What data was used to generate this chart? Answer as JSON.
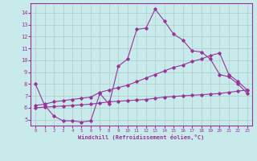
{
  "xlabel": "Windchill (Refroidissement éolien,°C)",
  "bg_color": "#c8eaea",
  "line_color": "#993399",
  "grid_color": "#aacccc",
  "xlim": [
    -0.5,
    23.5
  ],
  "ylim": [
    4.5,
    14.8
  ],
  "xticks": [
    0,
    1,
    2,
    3,
    4,
    5,
    6,
    7,
    8,
    9,
    10,
    11,
    12,
    13,
    14,
    15,
    16,
    17,
    18,
    19,
    20,
    21,
    22,
    23
  ],
  "yticks": [
    5,
    6,
    7,
    8,
    9,
    10,
    11,
    12,
    13,
    14
  ],
  "line1_x": [
    0,
    1,
    2,
    3,
    4,
    5,
    6,
    7,
    8,
    9,
    10,
    11,
    12,
    13,
    14,
    15,
    16,
    17,
    18,
    19,
    20,
    21,
    22,
    23
  ],
  "line1_y": [
    8.0,
    6.2,
    5.3,
    4.9,
    4.9,
    4.8,
    4.9,
    7.2,
    6.3,
    9.5,
    10.1,
    12.6,
    12.7,
    14.3,
    13.3,
    12.2,
    11.7,
    10.8,
    10.7,
    10.1,
    8.8,
    8.6,
    8.0,
    7.2
  ],
  "line2_x": [
    0,
    1,
    2,
    3,
    4,
    5,
    6,
    7,
    8,
    9,
    10,
    11,
    12,
    13,
    14,
    15,
    16,
    17,
    18,
    19,
    20,
    21,
    22,
    23
  ],
  "line2_y": [
    6.0,
    6.05,
    6.1,
    6.15,
    6.2,
    6.25,
    6.3,
    6.4,
    6.5,
    6.55,
    6.6,
    6.65,
    6.7,
    6.8,
    6.9,
    6.95,
    7.0,
    7.05,
    7.1,
    7.15,
    7.2,
    7.3,
    7.4,
    7.5
  ],
  "line3_x": [
    0,
    1,
    2,
    3,
    4,
    5,
    6,
    7,
    8,
    9,
    10,
    11,
    12,
    13,
    14,
    15,
    16,
    17,
    18,
    19,
    20,
    21,
    22,
    23
  ],
  "line3_y": [
    6.2,
    6.3,
    6.5,
    6.6,
    6.7,
    6.8,
    6.9,
    7.3,
    7.5,
    7.7,
    7.9,
    8.2,
    8.5,
    8.8,
    9.1,
    9.4,
    9.6,
    9.9,
    10.1,
    10.4,
    10.6,
    8.8,
    8.2,
    7.5
  ]
}
